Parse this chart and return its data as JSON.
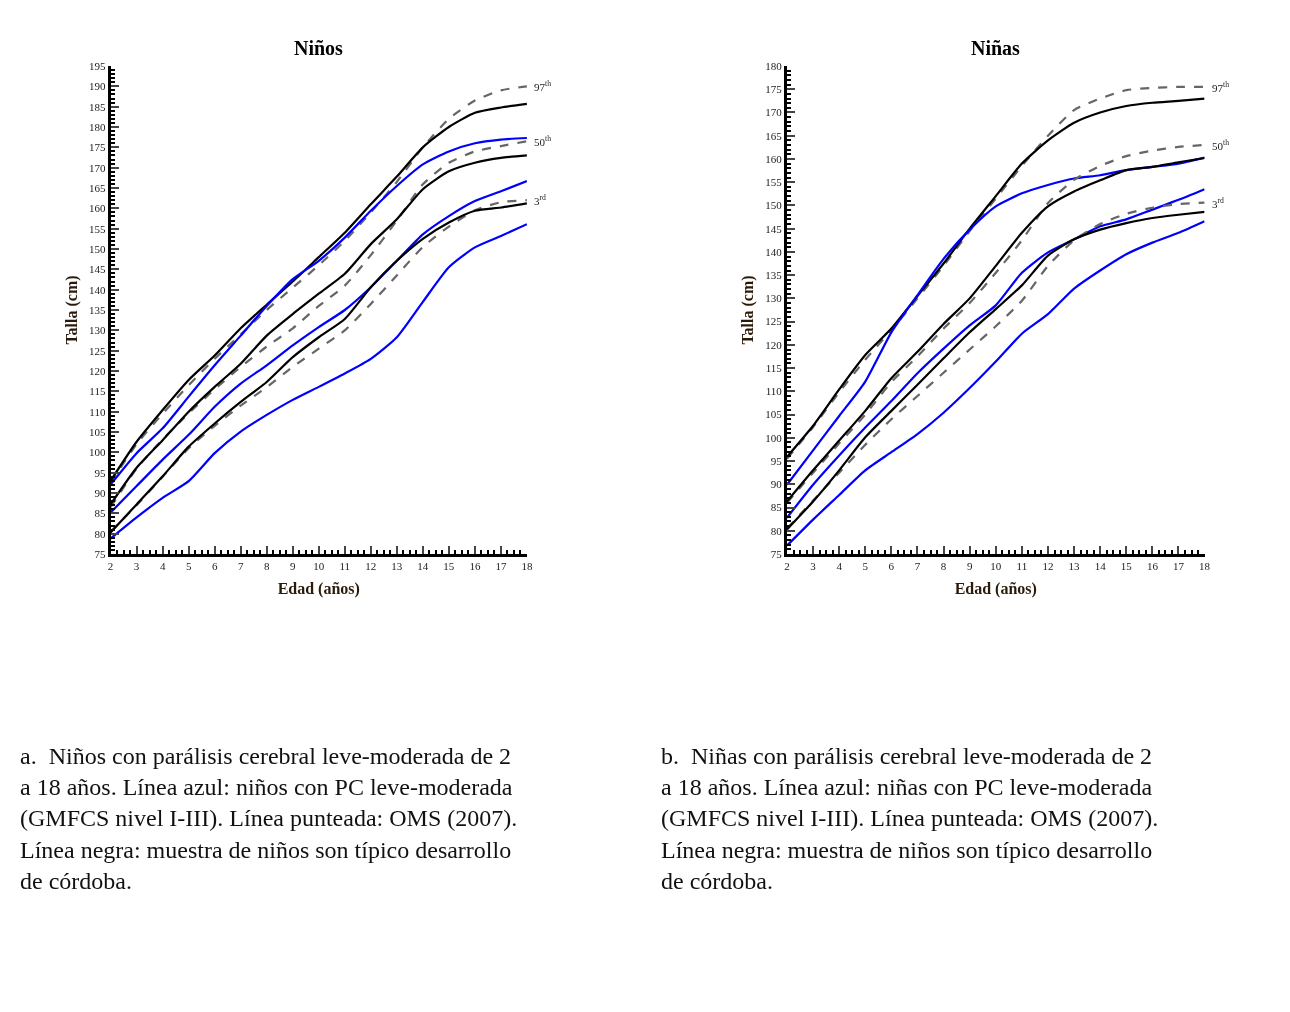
{
  "chart_data": [
    {
      "type": "line",
      "title": "Niños",
      "xlabel": "Edad (años)",
      "ylabel": "Talla (cm)",
      "x": [
        2,
        3,
        4,
        5,
        6,
        7,
        8,
        9,
        10,
        11,
        12,
        13,
        14,
        15,
        16,
        17,
        18
      ],
      "xlim": [
        2,
        18
      ],
      "xticks": [
        2,
        3,
        4,
        5,
        6,
        7,
        8,
        9,
        10,
        11,
        12,
        13,
        14,
        15,
        16,
        17,
        18
      ],
      "ylim": [
        75,
        195
      ],
      "yticks": [
        75,
        80,
        85,
        90,
        95,
        100,
        105,
        110,
        115,
        120,
        125,
        130,
        135,
        140,
        145,
        150,
        155,
        160,
        165,
        170,
        175,
        180,
        185,
        190,
        195
      ],
      "marker": "none",
      "series": [
        {
          "color": "#666666",
          "line_style": "dashed",
          "values": [
            92.5,
            102,
            109.5,
            116.5,
            123,
            129,
            135,
            140.5,
            146,
            152,
            159,
            166.5,
            175,
            182,
            186.5,
            189,
            190
          ]
        },
        {
          "color": "#000000",
          "line_style": "solid",
          "values": [
            93,
            102.6,
            110.4,
            117.8,
            123.8,
            130.5,
            136.3,
            142,
            148,
            154,
            161,
            167.8,
            175,
            180,
            183.5,
            184.8,
            185.7
          ]
        },
        {
          "color": "#0000ff",
          "line_style": "solid",
          "values": [
            92.1,
            99.8,
            105.9,
            113.7,
            121.4,
            128.7,
            136,
            142.6,
            147.1,
            152.8,
            159.4,
            165.5,
            170.8,
            174,
            176,
            176.9,
            177.3
          ]
        },
        {
          "color": "#666666",
          "line_style": "dashed",
          "values": [
            86.5,
            96,
            103.2,
            109.6,
            115.5,
            121,
            126,
            130.5,
            136,
            141,
            148.5,
            157,
            165.9,
            171.2,
            174,
            175.3,
            176.5
          ]
        },
        {
          "color": "#000000",
          "line_style": "solid",
          "values": [
            87.2,
            96.2,
            103,
            110,
            116.1,
            121.8,
            128.7,
            134,
            139,
            143.9,
            151.2,
            157.3,
            164.7,
            169.1,
            171.2,
            172.4,
            173
          ]
        },
        {
          "color": "#0000ff",
          "line_style": "solid",
          "values": [
            85.2,
            91.7,
            98.2,
            104.3,
            111.2,
            116.9,
            121.4,
            126.3,
            130.8,
            135,
            140.6,
            147.1,
            153.6,
            158.1,
            161.8,
            164.2,
            166.7
          ]
        },
        {
          "color": "#666666",
          "line_style": "dashed",
          "values": [
            80.5,
            87,
            94,
            101,
            106.5,
            111.5,
            116,
            121,
            125.5,
            130,
            136.5,
            143.5,
            150.5,
            155.5,
            159.5,
            161.5,
            162
          ]
        },
        {
          "color": "#000000",
          "line_style": "solid",
          "values": [
            80.3,
            87.2,
            94.1,
            101.4,
            107.1,
            112.4,
            117.3,
            123.4,
            128.3,
            132.8,
            140.6,
            147.1,
            152.5,
            156.5,
            159.4,
            160.2,
            161.2
          ]
        },
        {
          "color": "#0000ff",
          "line_style": "solid",
          "values": [
            78.8,
            84,
            88.8,
            92.9,
            99.8,
            105.1,
            109.2,
            112.9,
            116.1,
            119.4,
            123,
            128.3,
            137,
            145.5,
            150.4,
            153.2,
            156.1
          ]
        }
      ],
      "annotations": [
        "97$^{th}$",
        "50$^{th}$",
        "3$^{rd}$",
        "a.  Niños con parálisis cerebral leve-moderada de 2 a 18 años. Línea azul: niños con PC leve-moderada (GMFCS nivel I-III). Línea punteada: OMS (2007). Línea negra: muestra de niños son típico desarrollo de córdoba."
      ]
    },
    {
      "type": "line",
      "title": "Niñas",
      "xlabel": "Edad (años)",
      "ylabel": "Talla (cm)",
      "x": [
        2,
        3,
        4,
        5,
        6,
        7,
        8,
        9,
        10,
        11,
        12,
        13,
        14,
        15,
        16,
        17,
        18
      ],
      "xlim": [
        2,
        18
      ],
      "xticks": [
        2,
        3,
        4,
        5,
        6,
        7,
        8,
        9,
        10,
        11,
        12,
        13,
        14,
        15,
        16,
        17,
        18
      ],
      "ylim": [
        75,
        180
      ],
      "yticks": [
        75,
        80,
        85,
        90,
        95,
        100,
        105,
        110,
        115,
        120,
        125,
        130,
        135,
        140,
        145,
        150,
        155,
        160,
        165,
        170,
        175,
        180
      ],
      "marker": "none",
      "series": [
        {
          "color": "#666666",
          "line_style": "dashed",
          "values": [
            95.5,
            102.3,
            109.8,
            116.8,
            123.2,
            130,
            137,
            144.5,
            151.5,
            158.5,
            165,
            170.5,
            173,
            174.8,
            175.3,
            175.5,
            175.5
          ]
        },
        {
          "color": "#000000",
          "line_style": "solid",
          "values": [
            95.9,
            102.6,
            110.4,
            117.8,
            123.5,
            130.5,
            137.5,
            145,
            152,
            159,
            164,
            167.8,
            170,
            171.4,
            172.1,
            172.5,
            173
          ]
        },
        {
          "color": "#0000ff",
          "line_style": "solid",
          "values": [
            89.9,
            97.3,
            104.7,
            112.1,
            122.7,
            130.7,
            138.5,
            144.8,
            149.8,
            152.6,
            154.4,
            155.8,
            156.5,
            157.6,
            158.3,
            159,
            160.3
          ]
        },
        {
          "color": "#666666",
          "line_style": "dashed",
          "values": [
            86,
            92.5,
            98.8,
            105,
            112,
            117.5,
            123.5,
            129,
            135.5,
            142.5,
            150.5,
            155.5,
            158.5,
            160.6,
            161.8,
            162.6,
            163
          ]
        },
        {
          "color": "#000000",
          "line_style": "solid",
          "values": [
            86.3,
            93,
            99.4,
            105.8,
            112.8,
            118.5,
            124.5,
            130,
            137,
            144.1,
            149.8,
            153,
            155.4,
            157.6,
            158.3,
            159.3,
            160.2
          ]
        },
        {
          "color": "#0000ff",
          "line_style": "solid",
          "values": [
            82.8,
            89.9,
            96.2,
            102.2,
            107.9,
            113.9,
            119.2,
            124.2,
            128.5,
            135.5,
            139.9,
            142.7,
            145.5,
            147,
            149.1,
            151.2,
            153.5
          ]
        },
        {
          "color": "#666666",
          "line_style": "dashed",
          "values": [
            80.5,
            86.5,
            92.5,
            98.5,
            104,
            109,
            114,
            119,
            124,
            129.5,
            137,
            142.5,
            146,
            148.2,
            149.5,
            150.3,
            150.6
          ]
        },
        {
          "color": "#000000",
          "line_style": "solid",
          "values": [
            80.3,
            86.3,
            93,
            100.1,
            105.8,
            111.4,
            117.1,
            122.7,
            127.7,
            132.8,
            139.2,
            142.7,
            144.8,
            146.2,
            147.3,
            148,
            148.6
          ]
        },
        {
          "color": "#0000ff",
          "line_style": "solid",
          "values": [
            76.8,
            82.4,
            87.7,
            93,
            96.9,
            100.8,
            105.4,
            110.7,
            116.4,
            122.4,
            126.6,
            132.1,
            136,
            139.5,
            142,
            144.1,
            146.6
          ]
        }
      ],
      "annotations": [
        "97$^{th}$",
        "50$^{th}$",
        "3$^{rd}$",
        "b.  Niñas con parálisis cerebral leve-moderada de 2 a 18 años. Línea azul: niñas con PC leve-moderada (GMFCS nivel I-III). Línea punteada: OMS (2007). Línea negra: muestra de niños son típico desarrollo de córdoba."
      ]
    }
  ]
}
